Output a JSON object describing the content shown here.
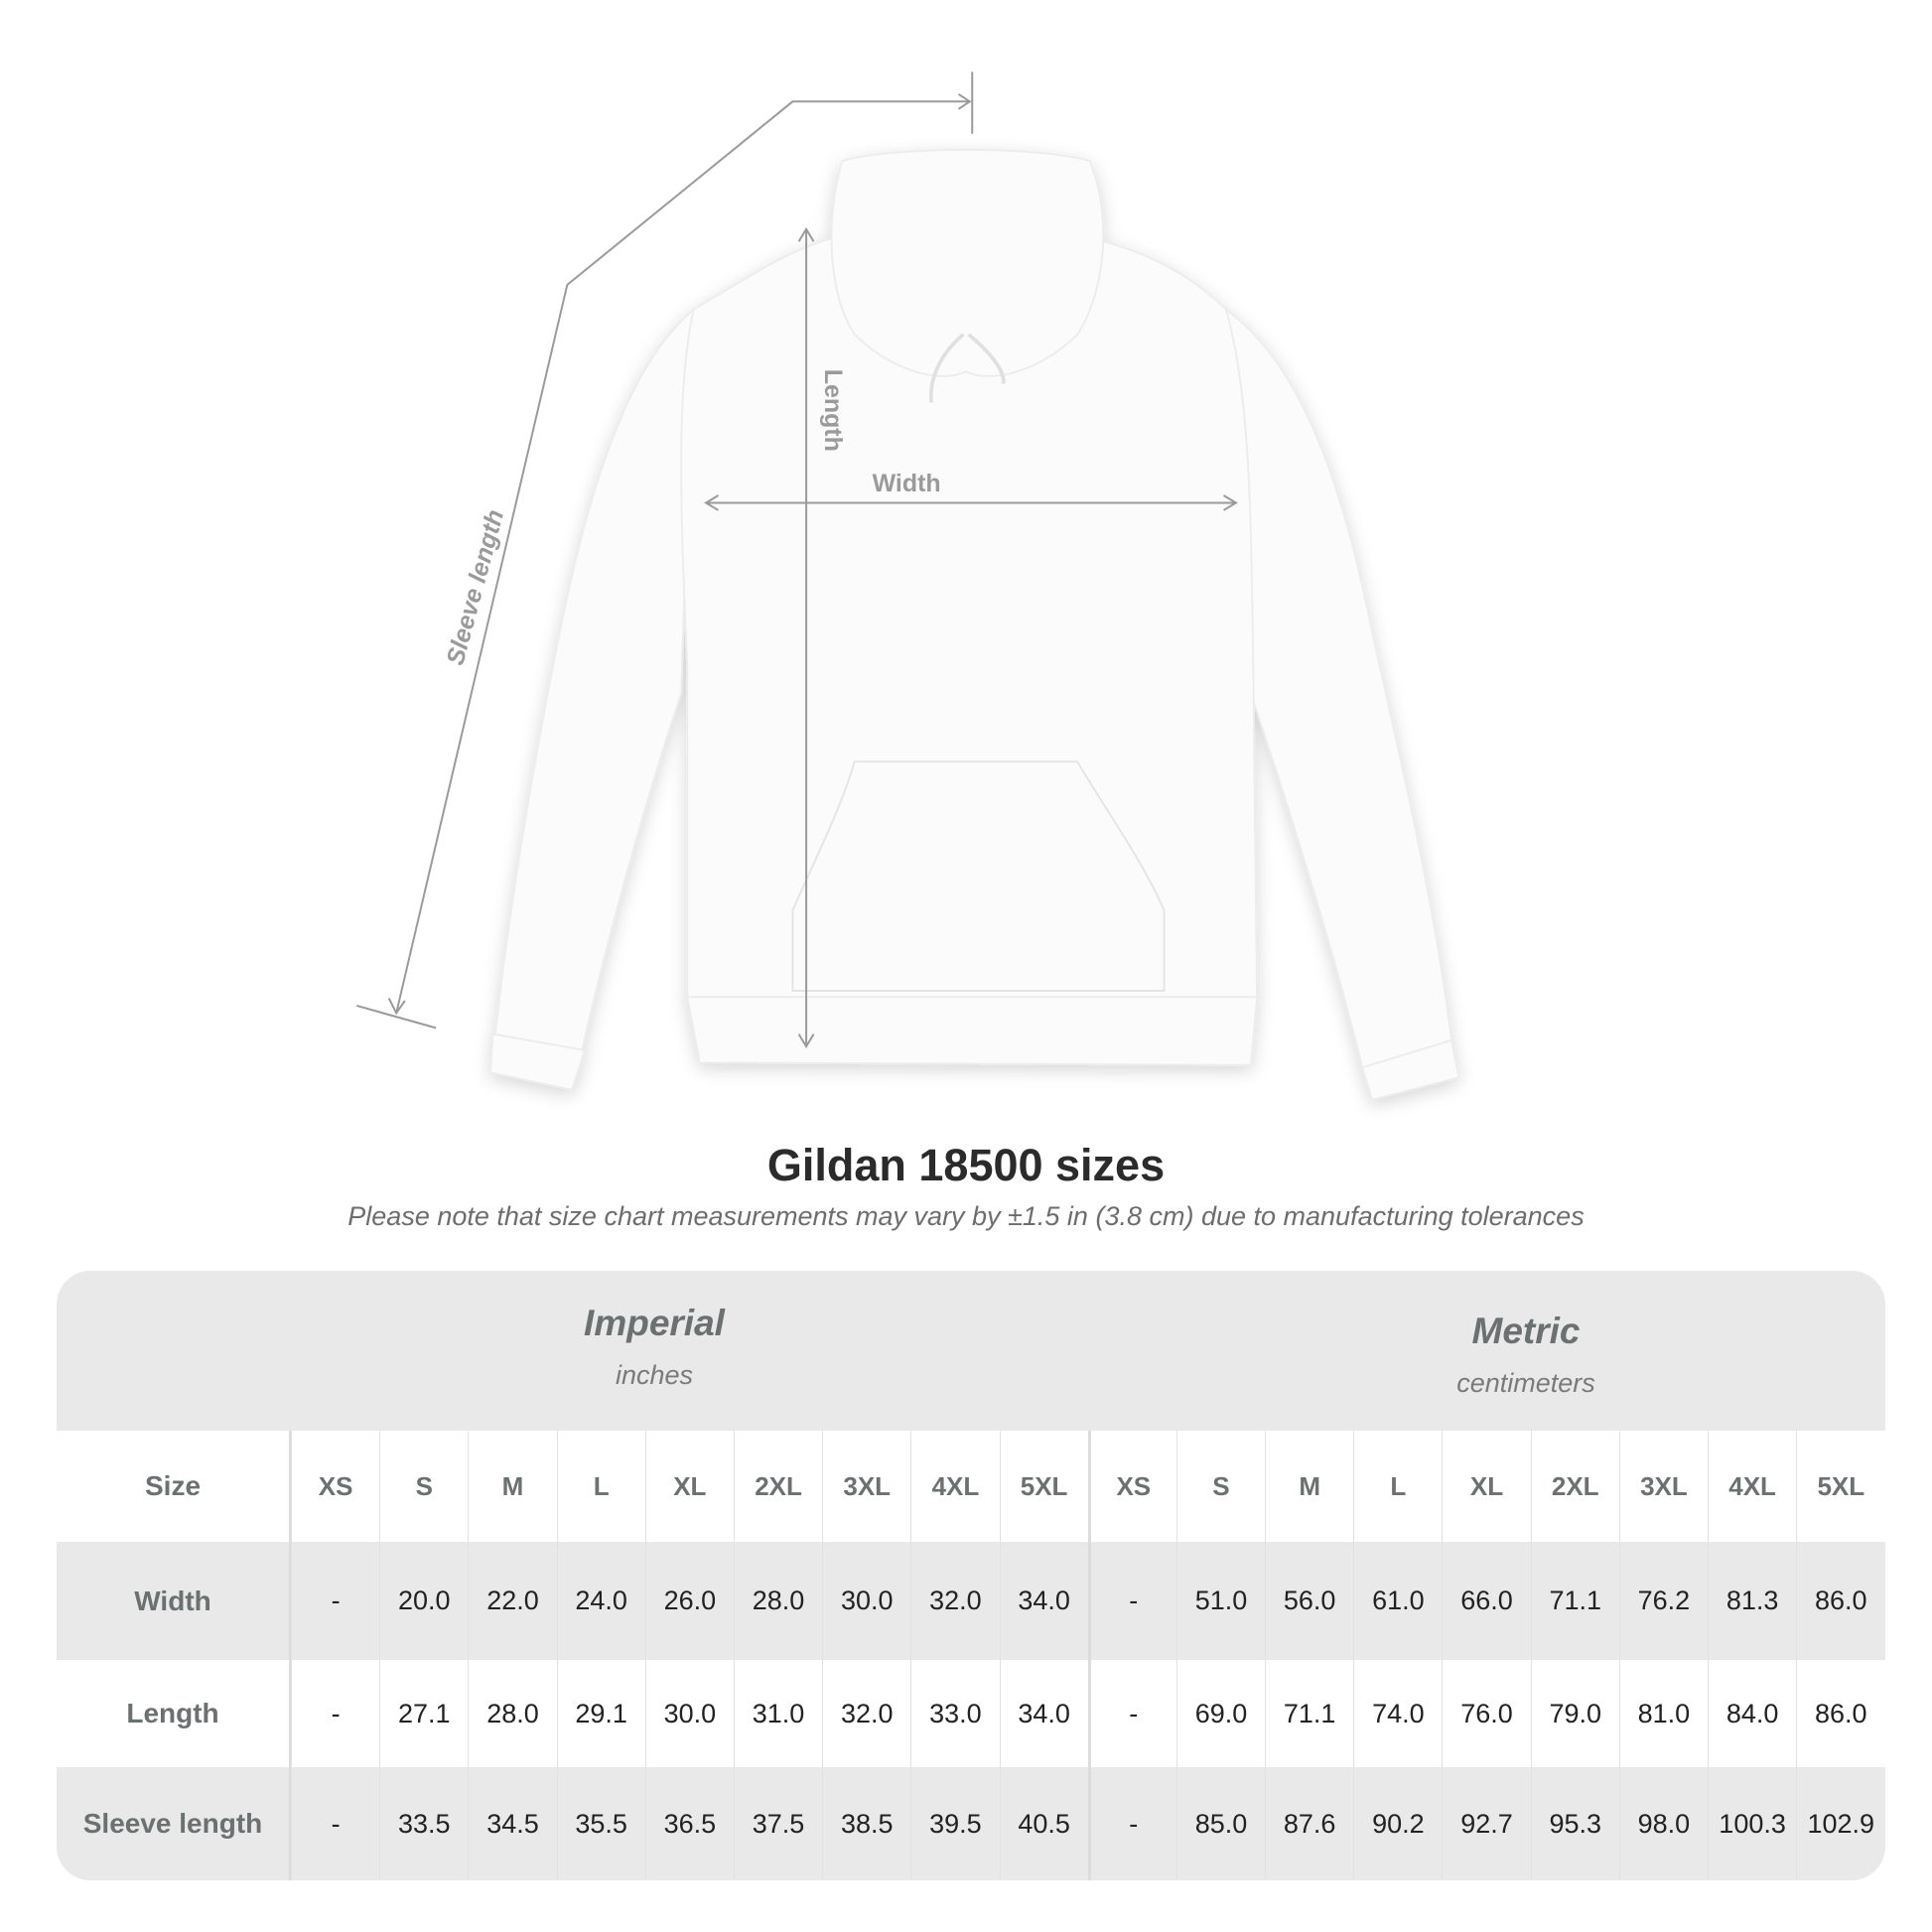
{
  "diagram": {
    "labels": {
      "length": "Length",
      "width": "Width",
      "sleeve_length": "Sleeve length"
    },
    "garment": "white hooded sweatshirt",
    "line_color": "#9a9a9a"
  },
  "title": "Gildan 18500 sizes",
  "subtitle": "Please note that size chart measurements may vary by ±1.5 in (3.8 cm) due to manufacturing tolerances",
  "table": {
    "imperial": {
      "name": "Imperial",
      "unit": "inches"
    },
    "metric": {
      "name": "Metric",
      "unit": "centimeters"
    },
    "size_label": "Size",
    "sizes": [
      "XS",
      "S",
      "M",
      "L",
      "XL",
      "2XL",
      "3XL",
      "4XL",
      "5XL"
    ],
    "rows": [
      {
        "label": "Width",
        "imperial": [
          "-",
          "20.0",
          "22.0",
          "24.0",
          "26.0",
          "28.0",
          "30.0",
          "32.0",
          "34.0"
        ],
        "metric": [
          "-",
          "51.0",
          "56.0",
          "61.0",
          "66.0",
          "71.1",
          "76.2",
          "81.3",
          "86.0"
        ]
      },
      {
        "label": "Length",
        "imperial": [
          "-",
          "27.1",
          "28.0",
          "29.1",
          "30.0",
          "31.0",
          "32.0",
          "33.0",
          "34.0"
        ],
        "metric": [
          "-",
          "69.0",
          "71.1",
          "74.0",
          "76.0",
          "79.0",
          "81.0",
          "84.0",
          "86.0"
        ]
      },
      {
        "label": "Sleeve length",
        "imperial": [
          "-",
          "33.5",
          "34.5",
          "35.5",
          "36.5",
          "37.5",
          "38.5",
          "39.5",
          "40.5"
        ],
        "metric": [
          "-",
          "85.0",
          "87.6",
          "90.2",
          "92.7",
          "95.3",
          "98.0",
          "100.3",
          "102.9"
        ]
      }
    ]
  }
}
